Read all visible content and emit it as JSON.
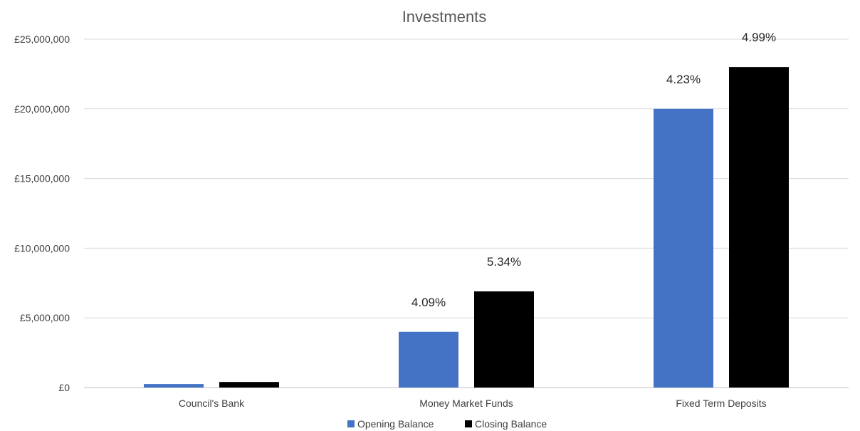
{
  "chart_data": {
    "type": "bar",
    "title": "Investments",
    "categories": [
      "Council's Bank",
      "Money Market Funds",
      "Fixed Term Deposits"
    ],
    "series": [
      {
        "name": "Opening Balance",
        "color": "#4472c4",
        "values": [
          250000,
          4000000,
          20000000
        ],
        "data_labels": [
          "",
          "4.09%",
          "4.23%"
        ]
      },
      {
        "name": "Closing Balance",
        "color": "#000000",
        "values": [
          400000,
          6900000,
          23000000
        ],
        "data_labels": [
          "",
          "5.34%",
          "4.99%"
        ]
      }
    ],
    "ylim": [
      0,
      25000000
    ],
    "y_ticks": [
      0,
      5000000,
      10000000,
      15000000,
      20000000,
      25000000
    ],
    "y_tick_labels": [
      "£0",
      "£5,000,000",
      "£10,000,000",
      "£15,000,000",
      "£20,000,000",
      "£25,000,000"
    ],
    "xlabel": "",
    "ylabel": "",
    "grid": true,
    "legend_position": "bottom"
  }
}
